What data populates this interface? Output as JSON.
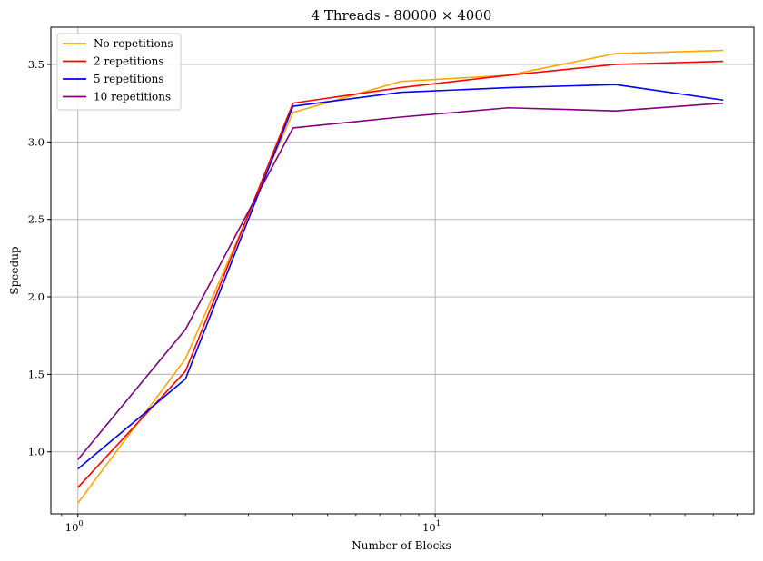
{
  "chart_data": {
    "type": "line",
    "title": "4 Threads - 80000 × 4000",
    "xlabel": "Number of Blocks",
    "ylabel": "Speedup",
    "xscale": "log",
    "xlim": [
      0.84,
      78
    ],
    "ylim": [
      0.6,
      3.74
    ],
    "xticks": [
      {
        "value": 1,
        "label": "10^0"
      },
      {
        "value": 10,
        "label": "10^1"
      }
    ],
    "yticks": [
      1.0,
      1.5,
      2.0,
      2.5,
      3.0,
      3.5
    ],
    "ytick_labels": [
      "1.0",
      "1.5",
      "2.0",
      "2.5",
      "3.0",
      "3.5"
    ],
    "grid": true,
    "legend_position": "top-left",
    "x": [
      1,
      2,
      4,
      8,
      16,
      32,
      64
    ],
    "series": [
      {
        "name": "No repetitions",
        "color": "#ffa500",
        "values": [
          0.67,
          1.6,
          3.19,
          3.39,
          3.43,
          3.57,
          3.59
        ]
      },
      {
        "name": "2 repetitions",
        "color": "#ff0000",
        "values": [
          0.77,
          1.52,
          3.25,
          3.35,
          3.43,
          3.5,
          3.52
        ]
      },
      {
        "name": "5 repetitions",
        "color": "#0000ff",
        "values": [
          0.89,
          1.47,
          3.23,
          3.32,
          3.35,
          3.37,
          3.27
        ]
      },
      {
        "name": "10 repetitions",
        "color": "#800080",
        "values": [
          0.95,
          1.79,
          3.09,
          3.16,
          3.22,
          3.2,
          3.25
        ]
      }
    ]
  }
}
